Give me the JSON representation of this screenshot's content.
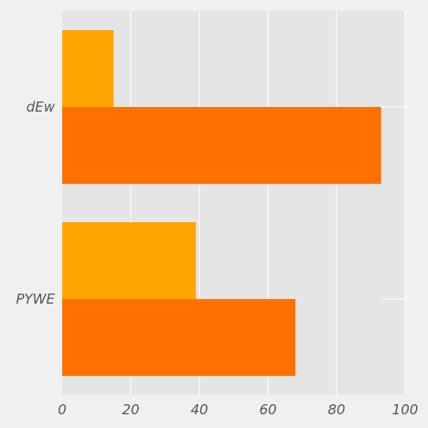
{
  "chart_data": {
    "type": "bar",
    "orientation": "horizontal",
    "categories": [
      "dEw",
      "PYWE"
    ],
    "series": [
      {
        "color": "#ffa500",
        "values": [
          15,
          39
        ]
      },
      {
        "color": "#ff7000",
        "values": [
          93,
          68
        ]
      }
    ],
    "xlim": [
      0,
      100
    ],
    "xticks": [
      0,
      20,
      40,
      60,
      80,
      100
    ],
    "grid": true,
    "legend": "none",
    "plot_background": "#e5e5e5",
    "grid_color": "#ffffff"
  }
}
